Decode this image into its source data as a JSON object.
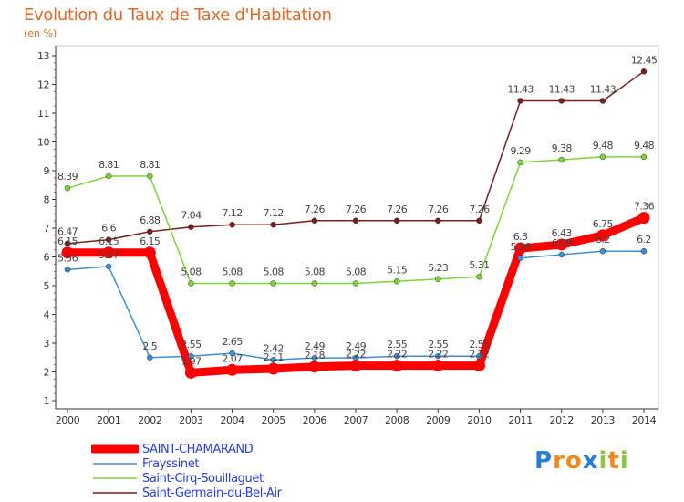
{
  "chart_data": {
    "type": "line",
    "title": "Evolution du Taux de Taxe d'Habitation",
    "subtitle": "(en %)",
    "x": [
      "2000",
      "2001",
      "2002",
      "2003",
      "2004",
      "2005",
      "2006",
      "2007",
      "2008",
      "2009",
      "2010",
      "2011",
      "2012",
      "2013",
      "2014"
    ],
    "y_ticks": [
      "1",
      "2",
      "3",
      "4",
      "5",
      "6",
      "7",
      "8",
      "9",
      "10",
      "11",
      "12",
      "13"
    ],
    "ylim": [
      0.8,
      13
    ],
    "grid": false,
    "legend_position": "bottom-left",
    "series": [
      {
        "name": "SAINT-CHAMARAND",
        "color": "#ff0000",
        "values": [
          6.15,
          6.15,
          6.15,
          1.97,
          2.07,
          2.11,
          2.18,
          2.22,
          2.22,
          2.22,
          2.22,
          6.3,
          6.43,
          6.75,
          7.36
        ],
        "labels": [
          "6.15",
          "6.15",
          "6.15",
          "1.97",
          "2.07",
          "2.11",
          "2.18",
          "2.22",
          "2.22",
          "2.22",
          "2.22",
          "6.3",
          "6.43",
          "6.75",
          "7.36"
        ]
      },
      {
        "name": "Frayssinet",
        "color": "#3d8fd6",
        "values": [
          5.56,
          5.67,
          2.5,
          2.55,
          2.65,
          2.42,
          2.49,
          2.49,
          2.55,
          2.55,
          2.55,
          5.96,
          6.08,
          6.2,
          6.2
        ],
        "labels": [
          "5.56",
          "5.67",
          "2.5",
          "2.55",
          "2.65",
          "2.42",
          "2.49",
          "2.49",
          "2.55",
          "2.55",
          "2.55",
          "5.96",
          "6.08",
          "6.2",
          "6.2"
        ]
      },
      {
        "name": "Saint-Cirq-Souillaguet",
        "color": "#7cd43a",
        "values": [
          8.39,
          8.81,
          8.81,
          5.08,
          5.08,
          5.08,
          5.08,
          5.08,
          5.15,
          5.23,
          5.31,
          9.29,
          9.38,
          9.48,
          9.48
        ],
        "labels": [
          "8.39",
          "8.81",
          "8.81",
          "5.08",
          "5.08",
          "5.08",
          "5.08",
          "5.08",
          "5.15",
          "5.23",
          "5.31",
          "9.29",
          "9.38",
          "9.48",
          "9.48"
        ]
      },
      {
        "name": "Saint-Germain-du-Bel-Air",
        "color": "#7a1e1e",
        "values": [
          6.47,
          6.6,
          6.88,
          7.04,
          7.12,
          7.12,
          7.26,
          7.26,
          7.26,
          7.26,
          7.26,
          11.43,
          11.43,
          11.43,
          12.45
        ],
        "labels": [
          "6.47",
          "6.6",
          "6.88",
          "7.04",
          "7.12",
          "7.12",
          "7.26",
          "7.26",
          "7.26",
          "7.26",
          "7.26",
          "11.43",
          "11.43",
          "11.43",
          "12.45"
        ]
      }
    ]
  },
  "logo": {
    "text": "Proxiti",
    "letters": [
      "P",
      "r",
      "o",
      "x",
      "i",
      "t",
      "i"
    ],
    "colors": [
      "#2a7fd4",
      "#f08a1c",
      "#f08a1c",
      "#2a7fd4",
      "#8cc63f",
      "#f08a1c",
      "#8cc63f"
    ]
  }
}
